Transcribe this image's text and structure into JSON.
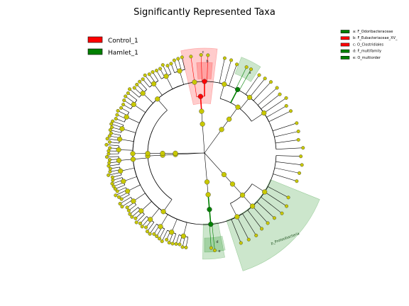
{
  "chart_data": {
    "type": "cladogram",
    "title": "Significantly Represented Taxa",
    "groups": [
      {
        "name": "Control_1",
        "color": "#ff0000"
      },
      {
        "name": "Hamlet_1",
        "color": "#008000"
      }
    ],
    "node_color": "#c8c800",
    "clades": [
      {
        "letter": "a",
        "full": "a: F_Odoribacteraceae",
        "name": "",
        "group": "Hamlet_1",
        "color": "#008000"
      },
      {
        "letter": "b",
        "full": "b: F_Eubacteriaceae_XV_",
        "name": "",
        "group": "Control_1",
        "color": "#ff0000"
      },
      {
        "letter": "c",
        "full": "c: O_Clostridiales",
        "name": "",
        "group": "Control_1",
        "color": "#ff0000"
      },
      {
        "letter": "d",
        "full": "d: F_multifamily",
        "name": "",
        "group": "Hamlet_1",
        "color": "#008000"
      },
      {
        "letter": "e",
        "full": "e: O_multiorder",
        "name": "",
        "group": "Hamlet_1",
        "color": "#008000"
      }
    ],
    "sector_labels": [
      {
        "text": "p_Proteobacteria",
        "group": "Hamlet_1"
      }
    ],
    "rings": [
      "phylum",
      "class",
      "order",
      "family",
      "genus"
    ]
  }
}
